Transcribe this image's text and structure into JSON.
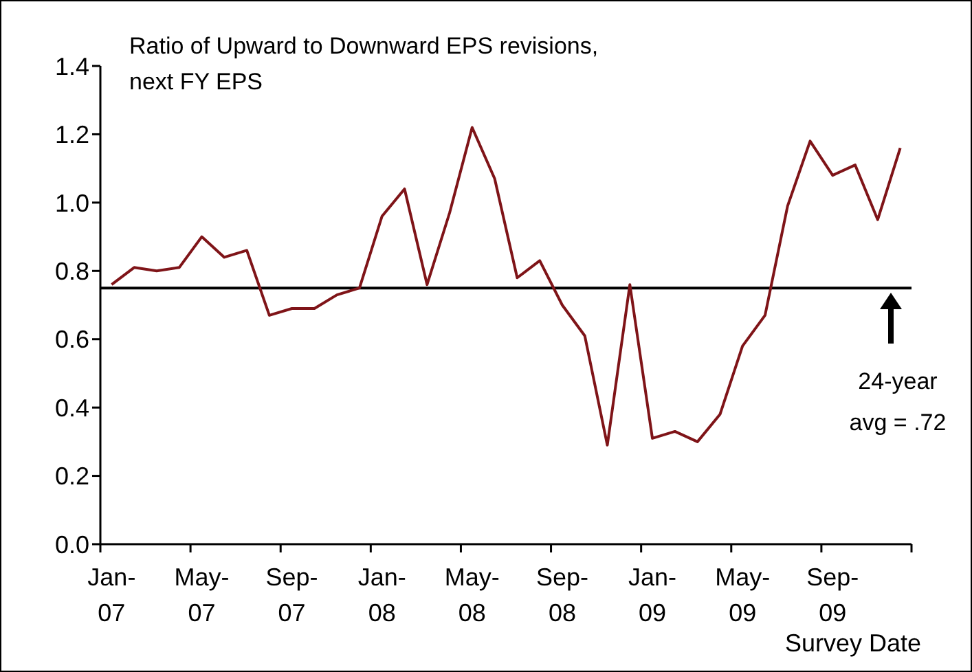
{
  "chart_data": {
    "type": "line",
    "title": "Ratio of Upward to Downward EPS revisions, next FY EPS",
    "xlabel": "Survey Date",
    "categories": [
      "Jan-07",
      null,
      null,
      null,
      "May-07",
      null,
      null,
      null,
      "Sep-07",
      null,
      null,
      null,
      "Jan-08",
      null,
      null,
      null,
      "May-08",
      null,
      null,
      null,
      "Sep-08",
      null,
      null,
      null,
      "Jan-09",
      null,
      null,
      null,
      "May-09",
      null,
      null,
      null,
      "Sep-09",
      null,
      null,
      null
    ],
    "series": [
      {
        "color": "#7f1418",
        "values": [
          0.76,
          0.81,
          0.8,
          0.81,
          0.9,
          0.84,
          0.86,
          0.67,
          0.69,
          0.69,
          0.73,
          0.75,
          0.96,
          1.04,
          0.76,
          0.97,
          1.22,
          1.07,
          0.78,
          0.83,
          0.7,
          0.61,
          0.29,
          0.76,
          0.31,
          0.33,
          0.3,
          0.38,
          0.58,
          0.67,
          0.99,
          1.18,
          1.08,
          1.11,
          0.95,
          1.16
        ]
      }
    ],
    "ylim": [
      0,
      1.4
    ],
    "yticks": [
      {
        "value": 0,
        "label": "0.0"
      },
      {
        "value": 0.2,
        "label": "0.2"
      },
      {
        "value": 0.4,
        "label": "0.4"
      },
      {
        "value": 0.6,
        "label": "0.6"
      },
      {
        "value": 0.8,
        "label": "0.8"
      },
      {
        "value": 1,
        "label": "1.0"
      },
      {
        "value": 1.2,
        "label": "1.2"
      },
      {
        "value": 1.4,
        "label": "1.4"
      }
    ],
    "ref_lines": [
      {
        "axis": "y",
        "value": 0.75,
        "color": "#000000"
      }
    ],
    "annotations": [
      "24-year avg = .72"
    ],
    "grid": false,
    "legend": false,
    "marker": "none",
    "line_style": "solid"
  }
}
